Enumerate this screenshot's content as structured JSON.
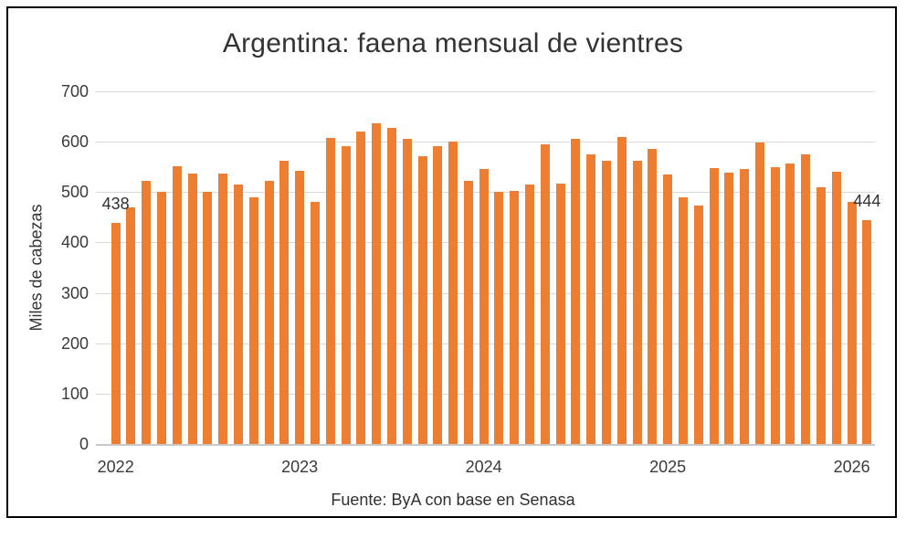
{
  "chart_data": {
    "type": "bar",
    "title": "Argentina: faena mensual de vientres",
    "ylabel": "Miles de cabezas",
    "xlabel": "",
    "source": "Fuente: ByA con base en Senasa",
    "ylim": [
      0,
      700
    ],
    "yticks": [
      0,
      100,
      200,
      300,
      400,
      500,
      600,
      700
    ],
    "grid": true,
    "legend": false,
    "bar_color": "#ED7D31",
    "gridline_color": "#D9D9D9",
    "axis_line_color": "#C8C8C8",
    "text_color": "#3A3A3A",
    "x": [
      "2022-01",
      "2022-02",
      "2022-03",
      "2022-04",
      "2022-05",
      "2022-06",
      "2022-07",
      "2022-08",
      "2022-09",
      "2022-10",
      "2022-11",
      "2022-12",
      "2023-01",
      "2023-02",
      "2023-03",
      "2023-04",
      "2023-05",
      "2023-06",
      "2023-07",
      "2023-08",
      "2023-09",
      "2023-10",
      "2023-11",
      "2023-12",
      "2024-01",
      "2024-02",
      "2024-03",
      "2024-04",
      "2024-05",
      "2024-06",
      "2024-07",
      "2024-08",
      "2024-09",
      "2024-10",
      "2024-11",
      "2024-12",
      "2025-01",
      "2025-02",
      "2025-03",
      "2025-04",
      "2025-05",
      "2025-06",
      "2025-07",
      "2025-08",
      "2025-09",
      "2025-10",
      "2025-11",
      "2025-12",
      "2026-01",
      "2026-02"
    ],
    "values": [
      438,
      470,
      523,
      500,
      552,
      536,
      501,
      537,
      515,
      490,
      523,
      562,
      543,
      481,
      607,
      592,
      620,
      637,
      628,
      605,
      571,
      592,
      600,
      522,
      545,
      500,
      502,
      515,
      594,
      516,
      605,
      574,
      563,
      610,
      562,
      585,
      535,
      489,
      474,
      547,
      538,
      545,
      598,
      549,
      557,
      575,
      510,
      541,
      481,
      444
    ],
    "xtick_labels": [
      {
        "index": 0,
        "label": "2022"
      },
      {
        "index": 12,
        "label": "2023"
      },
      {
        "index": 24,
        "label": "2024"
      },
      {
        "index": 36,
        "label": "2025"
      },
      {
        "index": 48,
        "label": "2026"
      }
    ],
    "data_labels": [
      {
        "index": 0,
        "text": "438"
      },
      {
        "index": 49,
        "text": "444"
      }
    ]
  }
}
